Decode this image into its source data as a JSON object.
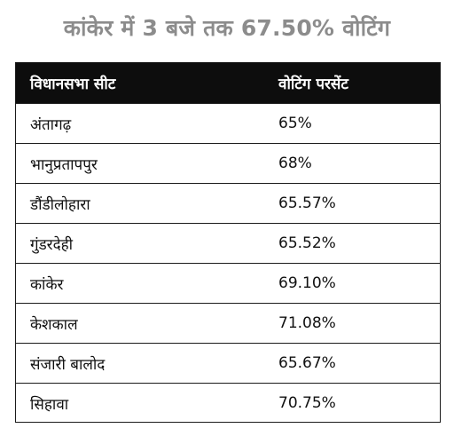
{
  "title": "कांकेर में 3 बजे तक 67.50% वोटिंग",
  "table": {
    "headers": [
      "विधानसभा सीट",
      "वोटिंग परसेंट"
    ],
    "rows": [
      [
        "अंतागढ़",
        "65%"
      ],
      [
        "भानुप्रतापपुर",
        "68%"
      ],
      [
        "डौंडीलोहारा",
        "65.57%"
      ],
      [
        "गुंडरदेही",
        "65.52%"
      ],
      [
        "कांकेर",
        "69.10%"
      ],
      [
        "केशकाल",
        "71.08%"
      ],
      [
        "संजारी बालोद",
        "65.67%"
      ],
      [
        "सिहावा",
        "70.75%"
      ]
    ]
  },
  "colors": {
    "title_text": "#8c8c8c",
    "header_background": "#0d0d0d",
    "header_text": "#ffffff",
    "border": "#1a1a1a"
  }
}
